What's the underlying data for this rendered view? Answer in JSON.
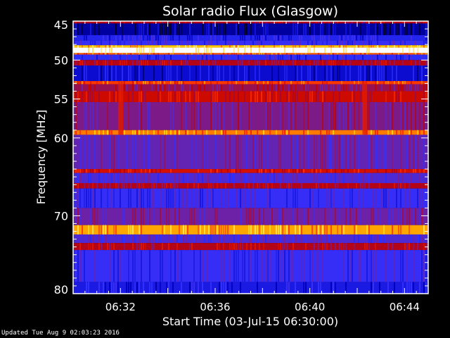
{
  "chart_data": {
    "type": "heatmap",
    "title": "Solar radio Flux (Glasgow)",
    "xlabel": "Start Time (03-Jul-15 06:30:00)",
    "ylabel": "Frequency [MHz]",
    "xlim_minutes": [
      "06:30",
      "06:45"
    ],
    "ylim": [
      45,
      80
    ],
    "y_inverted": true,
    "x_ticks": [
      "06:32",
      "06:36",
      "06:40",
      "06:44"
    ],
    "y_ticks": [
      45,
      50,
      55,
      60,
      70,
      80
    ],
    "colormap": [
      "#000000",
      "#0000c0",
      "#3030ff",
      "#7020a0",
      "#c00000",
      "#ff3000",
      "#ffd000",
      "#ffffff"
    ],
    "bands": [
      {
        "f": [
          45.0,
          45.3
        ],
        "level": 0.55
      },
      {
        "f": [
          45.3,
          46.8
        ],
        "level": 0.12
      },
      {
        "f": [
          46.8,
          47.5
        ],
        "level": 0.25
      },
      {
        "f": [
          47.5,
          48.1
        ],
        "level": 0.3
      },
      {
        "f": [
          48.1,
          48.4
        ],
        "level": 0.85
      },
      {
        "f": [
          48.4,
          49.1
        ],
        "level": 1.0
      },
      {
        "f": [
          49.1,
          49.3
        ],
        "level": 0.75
      },
      {
        "f": [
          49.3,
          50.0
        ],
        "level": 0.28
      },
      {
        "f": [
          50.0,
          50.7
        ],
        "level": 0.55
      },
      {
        "f": [
          50.7,
          52.7
        ],
        "level": 0.18
      },
      {
        "f": [
          52.7,
          53.1
        ],
        "level": 0.72
      },
      {
        "f": [
          53.1,
          54.0
        ],
        "level": 0.5
      },
      {
        "f": [
          54.0,
          55.4
        ],
        "level": 0.6
      },
      {
        "f": [
          55.4,
          59.0
        ],
        "level": 0.45
      },
      {
        "f": [
          59.0,
          59.6
        ],
        "level": 0.78
      },
      {
        "f": [
          59.6,
          64.0
        ],
        "level": 0.4
      },
      {
        "f": [
          64.0,
          64.5
        ],
        "level": 0.62
      },
      {
        "f": [
          64.5,
          65.8
        ],
        "level": 0.35
      },
      {
        "f": [
          65.8,
          66.5
        ],
        "level": 0.55
      },
      {
        "f": [
          66.5,
          69.0
        ],
        "level": 0.3
      },
      {
        "f": [
          69.0,
          71.2
        ],
        "level": 0.42
      },
      {
        "f": [
          71.2,
          72.4
        ],
        "level": 0.82
      },
      {
        "f": [
          72.4,
          73.5
        ],
        "level": 0.35
      },
      {
        "f": [
          73.5,
          74.4
        ],
        "level": 0.55
      },
      {
        "f": [
          74.4,
          78.5
        ],
        "level": 0.3
      },
      {
        "f": [
          78.5,
          80.0
        ],
        "level": 0.22
      }
    ],
    "bursts": [
      {
        "time": "06:32",
        "f": [
          52.7,
          59.6
        ],
        "level": 0.65
      },
      {
        "time": "06:42.3",
        "f": [
          52.7,
          59.6
        ],
        "level": 0.65
      }
    ]
  },
  "footer": {
    "updated": "Updated Tue Aug  9 02:03:23 2016"
  }
}
